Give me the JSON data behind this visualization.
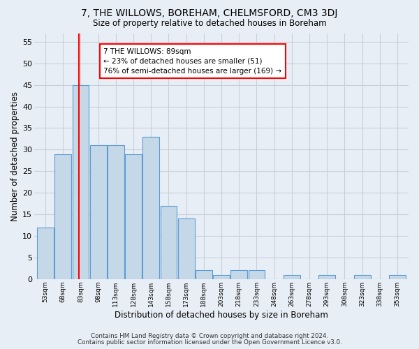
{
  "title": "7, THE WILLOWS, BOREHAM, CHELMSFORD, CM3 3DJ",
  "subtitle": "Size of property relative to detached houses in Boreham",
  "xlabel": "Distribution of detached houses by size in Boreham",
  "ylabel": "Number of detached properties",
  "bar_values": [
    12,
    29,
    45,
    31,
    31,
    29,
    33,
    17,
    14,
    2,
    1,
    2,
    2,
    0,
    1,
    0,
    1,
    0,
    1,
    0,
    1
  ],
  "bin_labels": [
    "53sqm",
    "68sqm",
    "83sqm",
    "98sqm",
    "113sqm",
    "128sqm",
    "143sqm",
    "158sqm",
    "173sqm",
    "188sqm",
    "203sqm",
    "218sqm",
    "233sqm",
    "248sqm",
    "263sqm",
    "278sqm",
    "293sqm",
    "308sqm",
    "323sqm",
    "338sqm",
    "353sqm"
  ],
  "bin_starts": [
    53,
    68,
    83,
    98,
    113,
    128,
    143,
    158,
    173,
    188,
    203,
    218,
    233,
    248,
    263,
    278,
    293,
    308,
    323,
    338,
    353
  ],
  "bin_width": 15,
  "bar_color": "#c5d8e8",
  "bar_edge_color": "#5b9bd5",
  "red_line_x": 89,
  "annotation_box_text": "7 THE WILLOWS: 89sqm\n← 23% of detached houses are smaller (51)\n76% of semi-detached houses are larger (169) →",
  "ylim": [
    0,
    57
  ],
  "yticks": [
    0,
    5,
    10,
    15,
    20,
    25,
    30,
    35,
    40,
    45,
    50,
    55
  ],
  "footer_line1": "Contains HM Land Registry data © Crown copyright and database right 2024.",
  "footer_line2": "Contains public sector information licensed under the Open Government Licence v3.0.",
  "background_color": "#e8eef5",
  "grid_color": "#c8d0dc"
}
